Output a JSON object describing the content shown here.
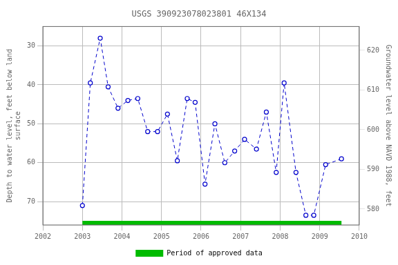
{
  "chart_data": {
    "type": "line",
    "title": "USGS 390923078023801 46X134",
    "y_label": "Depth to water level, feet below land\nsurface",
    "y2_label": "Groundwater level above NAVD 1988, feet",
    "x": [
      2003.0,
      2003.2,
      2003.45,
      2003.65,
      2003.9,
      2004.15,
      2004.4,
      2004.65,
      2004.9,
      2005.15,
      2005.4,
      2005.65,
      2005.85,
      2006.1,
      2006.35,
      2006.6,
      2006.85,
      2007.1,
      2007.4,
      2007.65,
      2007.9,
      2008.1,
      2008.4,
      2008.65,
      2008.85,
      2009.15,
      2009.55
    ],
    "series": [
      {
        "color": "#0000cc",
        "marker": "circle",
        "line_style": "dashed",
        "values": [
          71.0,
          39.5,
          28.0,
          40.5,
          46.0,
          44.0,
          43.5,
          52.0,
          52.0,
          47.5,
          59.5,
          43.5,
          44.5,
          65.5,
          50.0,
          60.0,
          57.0,
          54.0,
          56.5,
          47.0,
          62.5,
          39.5,
          62.5,
          73.5,
          73.5,
          60.5,
          59.0
        ]
      }
    ],
    "approved_period": {
      "name": "Period of approved data",
      "start": 2003.0,
      "end": 2009.55,
      "color": "#00bb00"
    },
    "xlim": [
      2002,
      2010
    ],
    "xticks": [
      2002,
      2003,
      2004,
      2005,
      2006,
      2007,
      2008,
      2009,
      2010
    ],
    "ylim": [
      76,
      25
    ],
    "yticks": [
      30,
      40,
      50,
      60,
      70
    ],
    "y2lim": [
      576,
      626
    ],
    "y2ticks": [
      580,
      590,
      600,
      610,
      620
    ],
    "grid": true,
    "legend": "bottom"
  }
}
